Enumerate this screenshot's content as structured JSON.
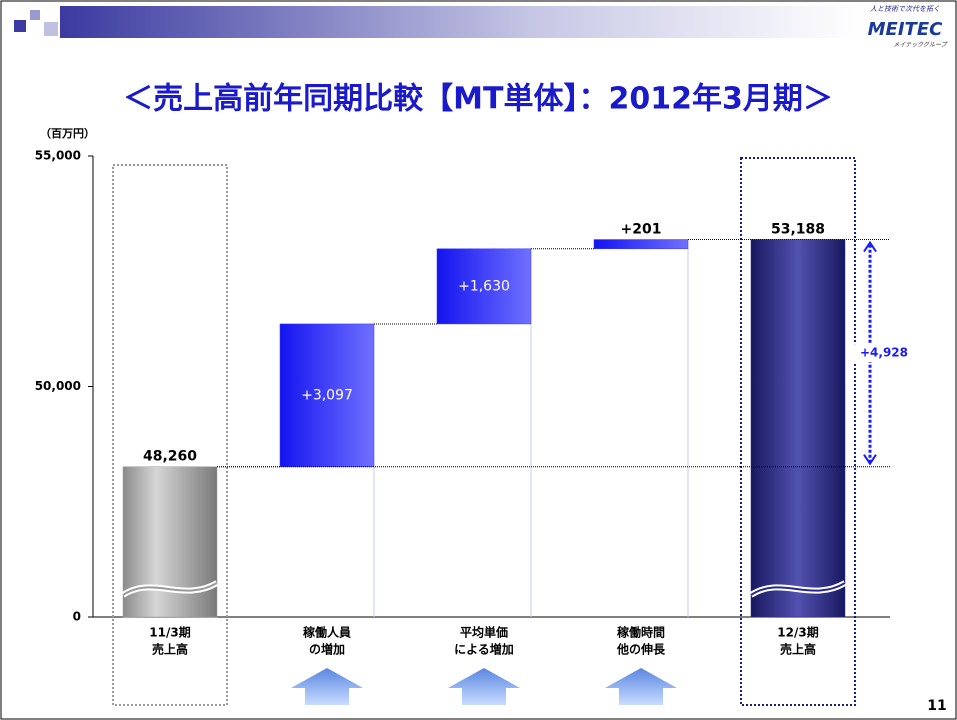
{
  "header": {
    "logo": "MEITEC",
    "logo_tagline": "人と技術で次代を拓く",
    "logo_group": "メイテックグループ"
  },
  "page_number": "11",
  "chart_data": {
    "type": "waterfall",
    "title": "＜売上高前年同期比較【MT単体】：2012年3月期＞",
    "y_unit": "（百万円）",
    "categories": [
      [
        "11/3期",
        "売上高"
      ],
      [
        "稼働人員",
        "の増加"
      ],
      [
        "平均単価",
        "による増加"
      ],
      [
        "稼働時間",
        "他の伸長"
      ],
      [
        "12/3期",
        "売上高"
      ]
    ],
    "measures": [
      "total",
      "relative",
      "relative",
      "relative",
      "total"
    ],
    "values": [
      48260,
      3097,
      1630,
      201,
      53188
    ],
    "value_labels": [
      "48,260",
      "+3,097",
      "+1,630",
      "+201",
      "53,188"
    ],
    "colors": [
      "#9a9a9a",
      "#3333ff",
      "#3333ff",
      "#3333ff",
      "#2a2a8a"
    ],
    "difference": {
      "value": 4928,
      "label": "+4,928",
      "color": "#1a1aff"
    },
    "ylim": [
      0,
      55000
    ],
    "y_break": 45000,
    "yticks": [
      0,
      {
        "value": 50000,
        "label": "50,000"
      },
      {
        "value": 55000,
        "label": "55,000"
      }
    ]
  }
}
